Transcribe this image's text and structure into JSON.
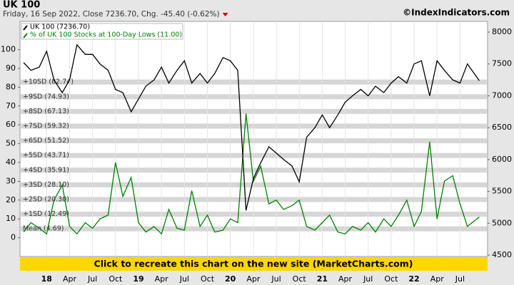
{
  "chart_data": {
    "type": "line",
    "title": "UK 100",
    "subtitle": "Friday, 16 Sep 2022, Close 7236.70, Chg. -45.40 (-0.62%)",
    "credit": "©IndexIndicators.com",
    "banner": "Click to recreate this chart on the new site (MarketCharts.com)",
    "xlim": [
      2017.71,
      2022.8
    ],
    "xticks": [
      {
        "value": 2018,
        "label": "18"
      },
      {
        "value": 2018.25,
        "label": "Apr"
      },
      {
        "value": 2018.5,
        "label": "Jul"
      },
      {
        "value": 2018.75,
        "label": "Oct"
      },
      {
        "value": 2019,
        "label": "19"
      },
      {
        "value": 2019.25,
        "label": "Apr"
      },
      {
        "value": 2019.5,
        "label": "Jul"
      },
      {
        "value": 2019.75,
        "label": "Oct"
      },
      {
        "value": 2020,
        "label": "20"
      },
      {
        "value": 2020.25,
        "label": "Apr"
      },
      {
        "value": 2020.5,
        "label": "Jul"
      },
      {
        "value": 2020.75,
        "label": "Oct"
      },
      {
        "value": 2021,
        "label": "21"
      },
      {
        "value": 2021.25,
        "label": "Apr"
      },
      {
        "value": 2021.5,
        "label": "Jul"
      },
      {
        "value": 2021.75,
        "label": "Oct"
      },
      {
        "value": 2022,
        "label": "22"
      },
      {
        "value": 2022.25,
        "label": "Apr"
      },
      {
        "value": 2022.5,
        "label": "Jul"
      }
    ],
    "ylim": [
      -10,
      115
    ],
    "yticks": [
      0,
      10,
      20,
      30,
      40,
      50,
      60,
      70,
      80,
      90,
      100
    ],
    "y2lim": [
      4478,
      8168
    ],
    "y2ticks": [
      4500,
      5000,
      5500,
      6000,
      6500,
      7000,
      7500,
      8000
    ],
    "sd_bands": [
      {
        "label": "+10SD (82.74)",
        "value": 82.74
      },
      {
        "label": "+9SD (74.93)",
        "value": 74.93
      },
      {
        "label": "+8SD (67.13)",
        "value": 67.13
      },
      {
        "label": "+7SD (59.32)",
        "value": 59.32
      },
      {
        "label": "+6SD (51.52)",
        "value": 51.52
      },
      {
        "label": "+5SD (43.71)",
        "value": 43.71
      },
      {
        "label": "+4SD (35.91)",
        "value": 35.91
      },
      {
        "label": "+3SD (28.10)",
        "value": 28.1
      },
      {
        "label": "+2SD (20.30)",
        "value": 20.3
      },
      {
        "label": "+1SD (12.49)",
        "value": 12.49
      },
      {
        "label": "Mean (4.69)",
        "value": 4.69
      }
    ],
    "x": [
      2017.75,
      2017.83,
      2017.92,
      2018.0,
      2018.08,
      2018.17,
      2018.25,
      2018.33,
      2018.42,
      2018.5,
      2018.58,
      2018.67,
      2018.75,
      2018.83,
      2018.92,
      2019.0,
      2019.08,
      2019.17,
      2019.25,
      2019.33,
      2019.42,
      2019.5,
      2019.58,
      2019.67,
      2019.75,
      2019.83,
      2019.92,
      2020.0,
      2020.08,
      2020.17,
      2020.25,
      2020.33,
      2020.42,
      2020.5,
      2020.58,
      2020.67,
      2020.75,
      2020.83,
      2020.92,
      2021.0,
      2021.08,
      2021.17,
      2021.25,
      2021.33,
      2021.42,
      2021.5,
      2021.58,
      2021.67,
      2021.75,
      2021.83,
      2021.92,
      2022.0,
      2022.08,
      2022.17,
      2022.25,
      2022.33,
      2022.42,
      2022.5,
      2022.58,
      2022.71
    ],
    "series": [
      {
        "name": "UK 100 (7236.70)",
        "color": "#000000",
        "axis": "y2",
        "values": [
          7520,
          7400,
          7450,
          7700,
          7250,
          7050,
          7250,
          7800,
          7650,
          7650,
          7500,
          7400,
          7100,
          7050,
          6750,
          6950,
          7150,
          7250,
          7450,
          7200,
          7400,
          7550,
          7200,
          7350,
          7200,
          7350,
          7600,
          7550,
          7400,
          5200,
          5700,
          5950,
          6200,
          6100,
          6000,
          5900,
          5650,
          6350,
          6500,
          6700,
          6500,
          6700,
          6900,
          7000,
          7100,
          7000,
          7150,
          7050,
          7200,
          7300,
          7200,
          7500,
          7550,
          7000,
          7550,
          7400,
          7250,
          7200,
          7500,
          7236.7
        ]
      },
      {
        "name": "% of UK 100 Stocks at 100-Day Lows (11.00)",
        "color": "#008000",
        "values": [
          3,
          8,
          5,
          2,
          20,
          28,
          6,
          2,
          8,
          5,
          10,
          12,
          40,
          22,
          32,
          8,
          3,
          6,
          2,
          15,
          5,
          4,
          25,
          6,
          12,
          3,
          4,
          10,
          8,
          66,
          30,
          38,
          18,
          20,
          15,
          17,
          20,
          6,
          4,
          8,
          12,
          3,
          2,
          6,
          4,
          8,
          3,
          10,
          6,
          12,
          20,
          6,
          14,
          51,
          10,
          30,
          33,
          18,
          6,
          11
        ]
      }
    ]
  }
}
